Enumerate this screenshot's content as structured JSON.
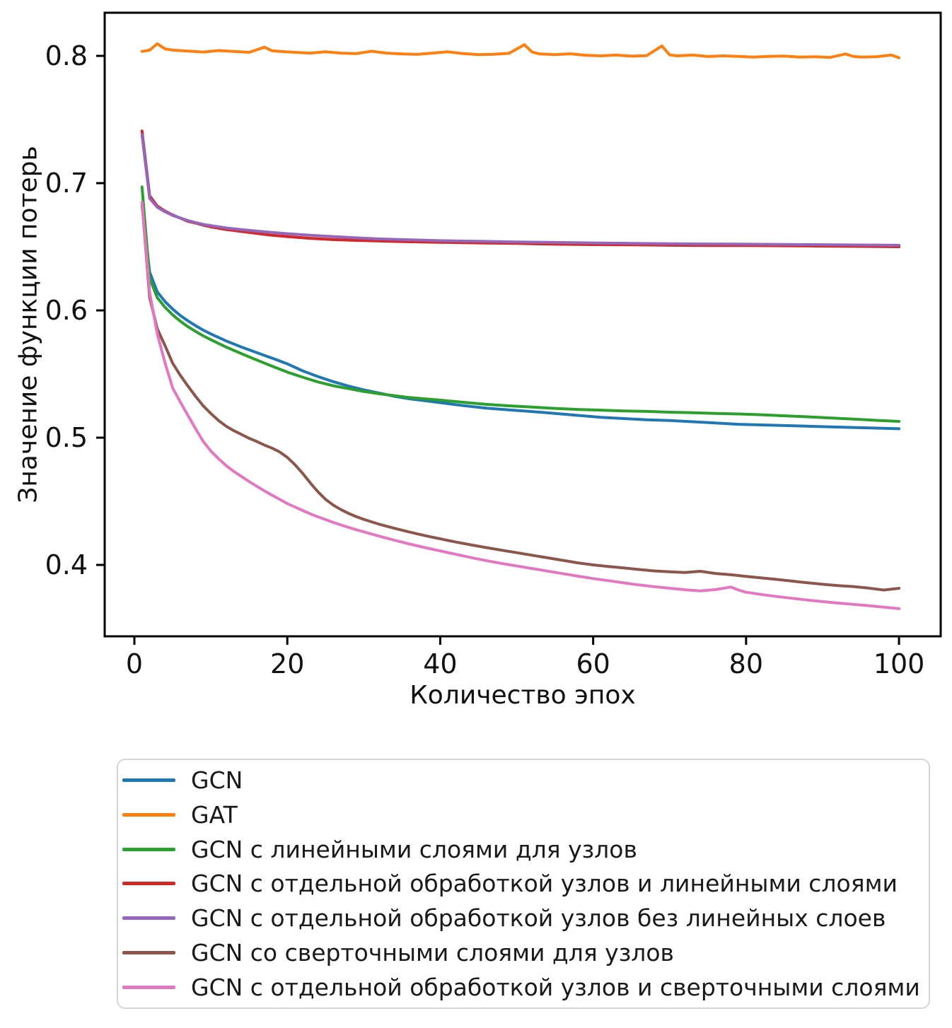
{
  "figure": {
    "background": "#ffffff",
    "text_color": "#111111"
  },
  "chart_data": {
    "type": "line",
    "title": "",
    "xlabel": "Количество эпох",
    "ylabel": "Значение функции потерь",
    "xlim": [
      -3.885,
      105.45
    ],
    "ylim": [
      0.3439,
      0.8339
    ],
    "xticks": [
      0,
      20,
      40,
      60,
      80,
      100
    ],
    "yticks": [
      0.4,
      0.5,
      0.6,
      0.7,
      0.8
    ],
    "grid": false,
    "legend_position": "below",
    "series": [
      {
        "name": "GCN",
        "color": "#1f77b4",
        "x": [
          1,
          2,
          3,
          4,
          5,
          6,
          7,
          8,
          9,
          10,
          12,
          14,
          16,
          18,
          20,
          22,
          24,
          26,
          28,
          30,
          32,
          34,
          36,
          38,
          40,
          43,
          46,
          49,
          52,
          55,
          58,
          61,
          64,
          67,
          70,
          73,
          76,
          79,
          82,
          85,
          88,
          91,
          94,
          97,
          100
        ],
        "y": [
          0.682,
          0.63,
          0.6145,
          0.607,
          0.601,
          0.596,
          0.5918,
          0.588,
          0.5845,
          0.5815,
          0.576,
          0.5712,
          0.5668,
          0.5625,
          0.558,
          0.5525,
          0.548,
          0.544,
          0.5405,
          0.5375,
          0.535,
          0.5325,
          0.5305,
          0.529,
          0.5275,
          0.5252,
          0.5232,
          0.5218,
          0.5205,
          0.519,
          0.5175,
          0.516,
          0.515,
          0.514,
          0.5135,
          0.5125,
          0.5115,
          0.5105,
          0.51,
          0.5095,
          0.509,
          0.5085,
          0.508,
          0.5075,
          0.507
        ]
      },
      {
        "name": "GAT",
        "color": "#ff7f0e",
        "x": [
          1,
          2,
          3,
          4,
          5,
          7,
          9,
          11,
          13,
          15,
          17,
          18,
          19,
          21,
          23,
          25,
          27,
          29,
          31,
          33,
          35,
          37,
          39,
          41,
          43,
          45,
          47,
          49,
          51,
          52,
          53,
          55,
          57,
          59,
          61,
          63,
          65,
          67,
          69,
          70,
          71,
          73,
          75,
          77,
          79,
          81,
          83,
          85,
          87,
          89,
          91,
          93,
          94,
          95,
          97,
          99,
          100
        ],
        "y": [
          0.8035,
          0.8045,
          0.8095,
          0.8055,
          0.8045,
          0.8038,
          0.803,
          0.8042,
          0.8035,
          0.8028,
          0.8068,
          0.804,
          0.8035,
          0.8028,
          0.8022,
          0.8032,
          0.8022,
          0.8018,
          0.8036,
          0.8022,
          0.8015,
          0.8012,
          0.8022,
          0.8032,
          0.8018,
          0.801,
          0.8013,
          0.802,
          0.8088,
          0.803,
          0.8015,
          0.801,
          0.8016,
          0.8005,
          0.8,
          0.8006,
          0.7998,
          0.8002,
          0.8078,
          0.8008,
          0.8,
          0.8006,
          0.7995,
          0.8,
          0.7996,
          0.799,
          0.7996,
          0.7999,
          0.799,
          0.7993,
          0.7988,
          0.8015,
          0.7996,
          0.799,
          0.7993,
          0.8006,
          0.7985
        ]
      },
      {
        "name": "GCN с линейными слоями для узлов",
        "color": "#2ca02c",
        "x": [
          1,
          2,
          3,
          4,
          5,
          6,
          7,
          8,
          9,
          10,
          12,
          14,
          16,
          18,
          20,
          22,
          24,
          26,
          28,
          30,
          32,
          34,
          36,
          38,
          40,
          43,
          46,
          49,
          52,
          55,
          58,
          61,
          64,
          67,
          70,
          73,
          76,
          79,
          82,
          85,
          88,
          91,
          94,
          97,
          100
        ],
        "y": [
          0.697,
          0.625,
          0.61,
          0.6025,
          0.5965,
          0.5915,
          0.5872,
          0.5835,
          0.58,
          0.577,
          0.5712,
          0.566,
          0.561,
          0.5562,
          0.5515,
          0.5475,
          0.5438,
          0.5408,
          0.5385,
          0.5363,
          0.5345,
          0.533,
          0.5315,
          0.5305,
          0.5295,
          0.5278,
          0.5262,
          0.525,
          0.524,
          0.523,
          0.5222,
          0.5216,
          0.521,
          0.5206,
          0.52,
          0.5196,
          0.519,
          0.5186,
          0.518,
          0.5172,
          0.5164,
          0.5155,
          0.5146,
          0.5136,
          0.5128
        ]
      },
      {
        "name": "GCN с отдельной обработкой узлов и линейными слоями",
        "color": "#d62728",
        "x": [
          1,
          2,
          3,
          4,
          5,
          6,
          7,
          8,
          9,
          10,
          12,
          14,
          16,
          18,
          20,
          23,
          26,
          29,
          32,
          35,
          40,
          45,
          50,
          55,
          60,
          65,
          70,
          75,
          80,
          85,
          90,
          95,
          100
        ],
        "y": [
          0.741,
          0.69,
          0.682,
          0.678,
          0.675,
          0.6725,
          0.67,
          0.6686,
          0.667,
          0.6656,
          0.6635,
          0.662,
          0.6605,
          0.659,
          0.658,
          0.6566,
          0.6556,
          0.655,
          0.6545,
          0.654,
          0.6535,
          0.653,
          0.6526,
          0.652,
          0.6517,
          0.6515,
          0.6512,
          0.651,
          0.651,
          0.6508,
          0.6505,
          0.6503,
          0.65
        ]
      },
      {
        "name": "GCN с отдельной обработкой узлов без линейных слоев",
        "color": "#9467bd",
        "x": [
          1,
          2,
          3,
          4,
          5,
          6,
          7,
          8,
          9,
          10,
          12,
          14,
          16,
          18,
          20,
          23,
          26,
          29,
          32,
          35,
          40,
          45,
          50,
          55,
          60,
          65,
          70,
          75,
          80,
          85,
          90,
          95,
          100
        ],
        "y": [
          0.738,
          0.688,
          0.681,
          0.6775,
          0.6746,
          0.6726,
          0.6706,
          0.669,
          0.6676,
          0.6666,
          0.6648,
          0.6635,
          0.6623,
          0.6613,
          0.6603,
          0.659,
          0.658,
          0.657,
          0.6562,
          0.6556,
          0.6548,
          0.6543,
          0.6538,
          0.6534,
          0.653,
          0.6527,
          0.6524,
          0.6522,
          0.652,
          0.6518,
          0.6516,
          0.6514,
          0.6512
        ]
      },
      {
        "name": "GCN со сверточными слоями для узлов",
        "color": "#8c564b",
        "x": [
          1,
          2,
          3,
          4,
          5,
          6,
          7,
          8,
          9,
          10,
          11,
          12,
          13,
          14,
          15,
          16,
          17,
          18,
          19,
          20,
          21,
          22,
          23,
          24,
          25,
          26,
          27,
          28,
          29,
          30,
          32,
          34,
          36,
          38,
          40,
          42,
          44,
          46,
          48,
          50,
          52,
          54,
          56,
          58,
          60,
          62,
          64,
          66,
          68,
          70,
          72,
          74,
          76,
          78,
          80,
          82,
          84,
          86,
          88,
          90,
          92,
          94,
          96,
          98,
          100
        ],
        "y": [
          0.685,
          0.61,
          0.5855,
          0.5725,
          0.5585,
          0.549,
          0.5405,
          0.5325,
          0.525,
          0.519,
          0.5135,
          0.509,
          0.5055,
          0.5025,
          0.4995,
          0.497,
          0.4942,
          0.4918,
          0.4888,
          0.4845,
          0.4788,
          0.472,
          0.4645,
          0.4575,
          0.4515,
          0.447,
          0.4435,
          0.4405,
          0.438,
          0.4358,
          0.432,
          0.4288,
          0.4258,
          0.423,
          0.4205,
          0.418,
          0.4158,
          0.4136,
          0.4116,
          0.4096,
          0.4076,
          0.4056,
          0.4036,
          0.4016,
          0.4,
          0.3988,
          0.3976,
          0.3964,
          0.3953,
          0.3946,
          0.394,
          0.395,
          0.3933,
          0.3923,
          0.391,
          0.3898,
          0.3886,
          0.3873,
          0.386,
          0.3848,
          0.3838,
          0.383,
          0.3818,
          0.3803,
          0.3816
        ]
      },
      {
        "name": "GCN с отдельной обработкой узлов и сверточными слоями",
        "color": "#e377c2",
        "x": [
          1,
          2,
          3,
          4,
          5,
          6,
          7,
          8,
          9,
          10,
          11,
          12,
          13,
          14,
          15,
          16,
          17,
          18,
          19,
          20,
          21,
          22,
          23,
          24,
          25,
          26,
          27,
          28,
          29,
          30,
          32,
          34,
          36,
          38,
          40,
          42,
          44,
          46,
          48,
          50,
          52,
          54,
          56,
          58,
          60,
          62,
          64,
          66,
          68,
          70,
          72,
          74,
          76,
          78,
          79,
          80,
          82,
          84,
          86,
          88,
          90,
          92,
          94,
          96,
          98,
          100
        ],
        "y": [
          0.685,
          0.614,
          0.5815,
          0.559,
          0.539,
          0.528,
          0.5175,
          0.507,
          0.497,
          0.4895,
          0.4835,
          0.478,
          0.4735,
          0.4695,
          0.4655,
          0.4618,
          0.4582,
          0.4548,
          0.4515,
          0.4482,
          0.4455,
          0.4428,
          0.4402,
          0.4378,
          0.4356,
          0.4334,
          0.4314,
          0.4295,
          0.4277,
          0.426,
          0.4226,
          0.4194,
          0.4164,
          0.4136,
          0.411,
          0.4084,
          0.4058,
          0.4034,
          0.4012,
          0.3992,
          0.3972,
          0.3952,
          0.3932,
          0.3912,
          0.3893,
          0.3876,
          0.3859,
          0.3843,
          0.3829,
          0.3817,
          0.3805,
          0.3796,
          0.3806,
          0.3826,
          0.3803,
          0.3785,
          0.3768,
          0.3752,
          0.3738,
          0.3724,
          0.3712,
          0.37,
          0.369,
          0.368,
          0.3668,
          0.3656
        ]
      }
    ]
  }
}
